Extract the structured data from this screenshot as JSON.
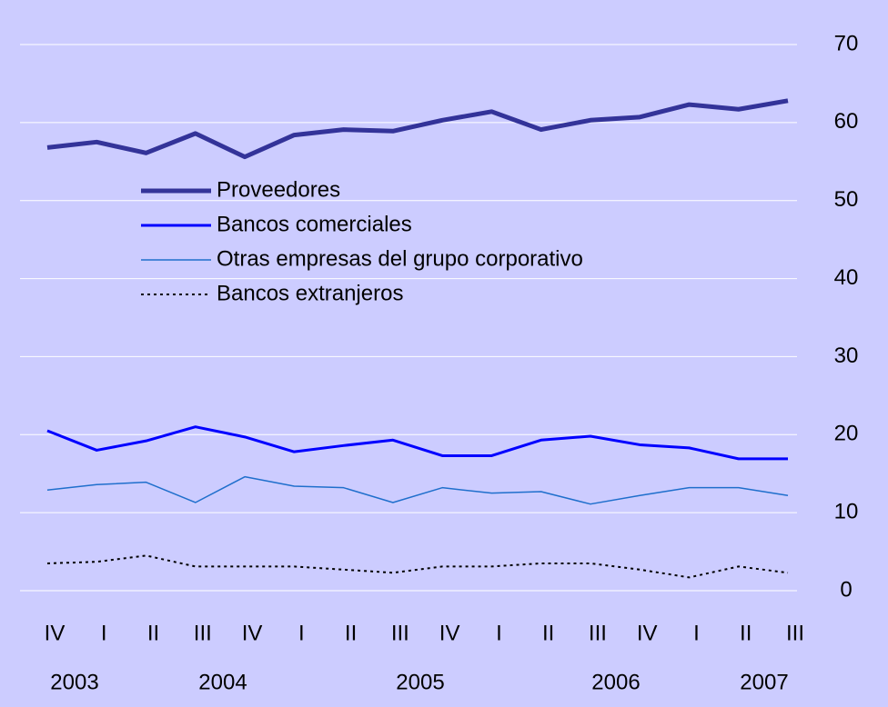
{
  "chart_data": {
    "type": "line",
    "categories": [
      "IV",
      "I",
      "II",
      "III",
      "IV",
      "I",
      "II",
      "III",
      "IV",
      "I",
      "II",
      "III",
      "IV",
      "I",
      "II",
      "III"
    ],
    "year_labels": [
      "2003",
      "2004",
      "2005",
      "2006",
      "2007"
    ],
    "series": [
      {
        "name": "Proveedores",
        "color": "#333399",
        "values": [
          56.8,
          57.5,
          56.1,
          58.6,
          55.6,
          58.4,
          59.1,
          58.9,
          60.3,
          61.4,
          59.1,
          60.3,
          60.7,
          62.3,
          61.7,
          62.8
        ]
      },
      {
        "name": "Bancos comerciales",
        "color": "#0000ff",
        "values": [
          20.5,
          18.0,
          19.2,
          21.0,
          19.7,
          17.8,
          18.6,
          19.3,
          17.3,
          17.3,
          19.3,
          19.8,
          18.7,
          18.3,
          16.9,
          16.9
        ]
      },
      {
        "name": "Otras empresas del grupo corporativo",
        "color": "#1f6fcc",
        "values": [
          12.9,
          13.6,
          13.9,
          11.3,
          14.6,
          13.4,
          13.2,
          11.3,
          13.2,
          12.5,
          12.7,
          11.1,
          12.2,
          13.2,
          13.2,
          12.2
        ]
      },
      {
        "name": "Bancos extranjeros",
        "color": "#000000",
        "values": [
          3.5,
          3.7,
          4.5,
          3.1,
          3.1,
          3.1,
          2.7,
          2.3,
          3.1,
          3.1,
          3.5,
          3.5,
          2.7,
          1.7,
          3.1,
          2.3
        ]
      }
    ],
    "ylim": [
      0,
      70
    ],
    "yticks": [
      0,
      10,
      20,
      30,
      40,
      50,
      60,
      70
    ],
    "grid": true,
    "y_axis_side": "right"
  }
}
